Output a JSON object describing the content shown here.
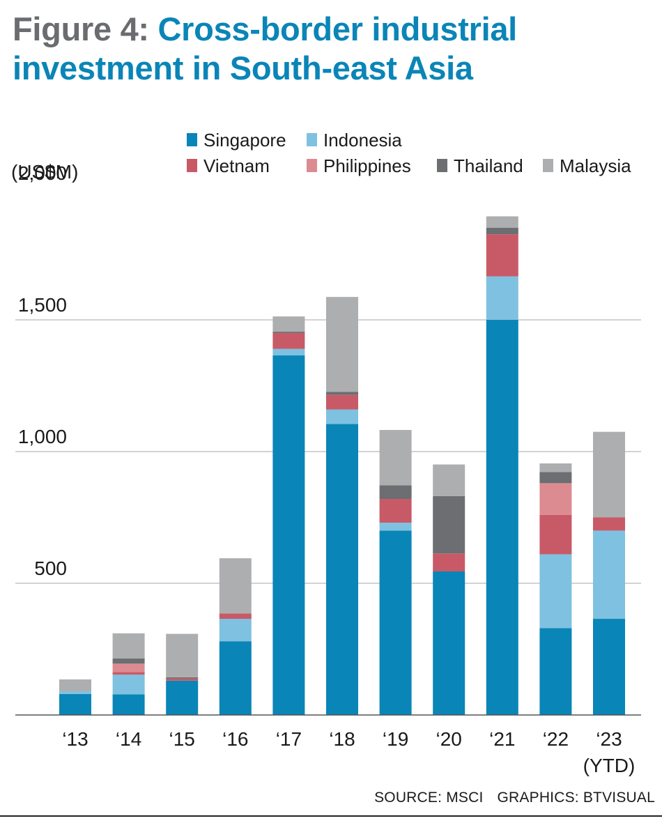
{
  "title": {
    "lead": "Figure 4:",
    "main": "Cross-border industrial investment in South-east Asia"
  },
  "footer": {
    "source": "SOURCE: MSCI",
    "graphics": "GRAPHICS: BTVISUAL"
  },
  "colors": {
    "Singapore": "#0a85b7",
    "Indonesia": "#7fc1e0",
    "Vietnam": "#c85a67",
    "Philippines": "#dc8b91",
    "Thailand": "#6c6e71",
    "Malaysia": "#adaeb0"
  },
  "chart_data": {
    "type": "bar",
    "stacked": true,
    "title": "Cross-border industrial investment in South-east Asia",
    "ylabel": "(US$M)",
    "xlabel": "",
    "ylim": [
      0,
      2000
    ],
    "yticks": [
      500,
      1000,
      1500,
      2000
    ],
    "ytick_labels": [
      "500",
      "1,000",
      "1,500",
      "2,000"
    ],
    "grid": true,
    "legend_position": "top",
    "categories": [
      "‘13",
      "‘14",
      "‘15",
      "‘16",
      "‘17",
      "‘18",
      "‘19",
      "‘20",
      "‘21",
      "‘22",
      "‘23 (YTD)"
    ],
    "category_lines": [
      [
        "‘13"
      ],
      [
        "‘14"
      ],
      [
        "‘15"
      ],
      [
        "‘16"
      ],
      [
        "‘17"
      ],
      [
        "‘18"
      ],
      [
        "‘19"
      ],
      [
        "‘20"
      ],
      [
        "‘21"
      ],
      [
        "‘22"
      ],
      [
        "‘23",
        "(YTD)"
      ]
    ],
    "series": [
      {
        "name": "Singapore",
        "values": [
          80,
          78,
          130,
          280,
          1365,
          1105,
          700,
          545,
          1500,
          330,
          365
        ]
      },
      {
        "name": "Indonesia",
        "values": [
          10,
          75,
          0,
          85,
          25,
          55,
          30,
          0,
          165,
          280,
          335
        ]
      },
      {
        "name": "Vietnam",
        "values": [
          0,
          10,
          8,
          20,
          60,
          55,
          90,
          68,
          160,
          150,
          50
        ]
      },
      {
        "name": "Philippines",
        "values": [
          0,
          32,
          0,
          0,
          0,
          0,
          0,
          0,
          0,
          120,
          0
        ]
      },
      {
        "name": "Thailand",
        "values": [
          0,
          20,
          5,
          0,
          5,
          12,
          52,
          218,
          25,
          42,
          0
        ]
      },
      {
        "name": "Malaysia",
        "values": [
          45,
          95,
          165,
          210,
          58,
          360,
          210,
          120,
          43,
          33,
          325
        ]
      }
    ]
  }
}
